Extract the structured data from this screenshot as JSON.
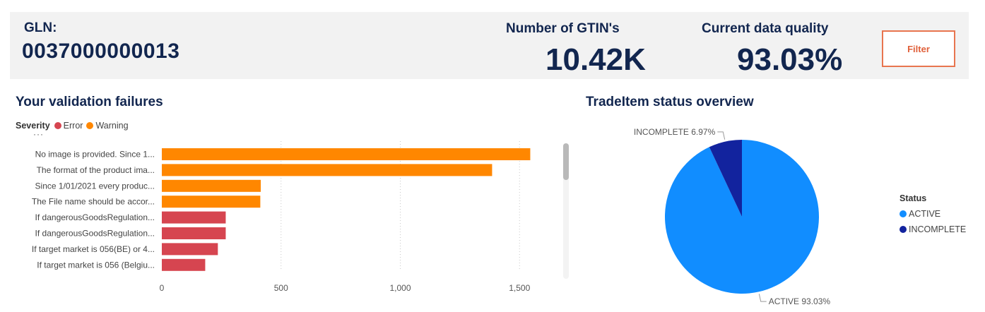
{
  "header": {
    "gln_label": "GLN:",
    "gln_value": "0037000000013",
    "gtin_title": "Number of GTIN's",
    "gtin_value": "10.42K",
    "quality_title": "Current data quality",
    "quality_value": "93.03%",
    "filter_label": "Filter"
  },
  "failures": {
    "title": "Your validation failures",
    "legend_title": "Severity",
    "legend": [
      {
        "label": "Error",
        "color": "#d64550"
      },
      {
        "label": "Warning",
        "color": "#ff8700"
      }
    ]
  },
  "status": {
    "title": "TradeItem status overview",
    "legend_title": "Status",
    "legend": [
      {
        "label": "ACTIVE",
        "color": "#118dff"
      },
      {
        "label": "INCOMPLETE",
        "color": "#12239e"
      }
    ]
  },
  "chart_data": [
    {
      "type": "bar",
      "orientation": "horizontal",
      "categories": [
        "No image is provided. Since 1...",
        "The format of the product ima...",
        "Since 1/01/2021 every produc...",
        "The File name should be accor...",
        "If dangerousGoodsRegulation...",
        "If dangerousGoodsRegulation...",
        "If target market is 056(BE) or 4...",
        "If target market is 056 (Belgiu..."
      ],
      "values": [
        1545,
        1385,
        415,
        413,
        268,
        268,
        235,
        182
      ],
      "severity": [
        "Warning",
        "Warning",
        "Warning",
        "Warning",
        "Error",
        "Error",
        "Error",
        "Error"
      ],
      "colors": {
        "Warning": "#ff8700",
        "Error": "#d64550"
      },
      "xticks": [
        0,
        500,
        1000,
        1500
      ],
      "xtick_labels": [
        "0",
        "500",
        "1,000",
        "1,500"
      ],
      "xlim": [
        0,
        1600
      ],
      "grid": true,
      "legend": "top-left"
    },
    {
      "type": "pie",
      "slices": [
        {
          "label": "ACTIVE",
          "value": 93.03,
          "display": "ACTIVE 93.03%",
          "color": "#118dff"
        },
        {
          "label": "INCOMPLETE",
          "value": 6.97,
          "display": "INCOMPLETE 6.97%",
          "color": "#12239e"
        }
      ],
      "legend": "right"
    }
  ]
}
